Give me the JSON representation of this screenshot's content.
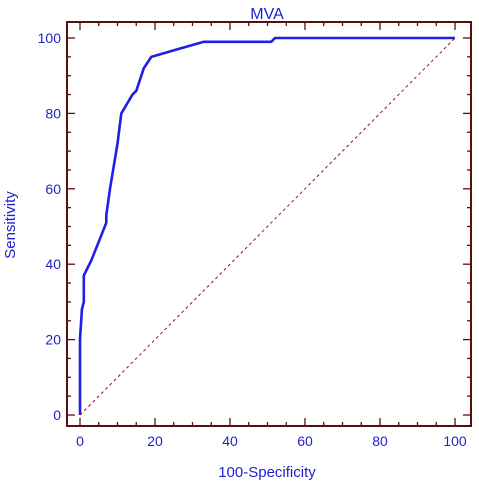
{
  "chart_data": {
    "type": "line",
    "title": "MVA",
    "xlabel": "100-Specificity",
    "ylabel": "Sensitivity",
    "xlim": [
      0,
      100
    ],
    "ylim": [
      0,
      100
    ],
    "x_ticks": [
      0,
      20,
      40,
      60,
      80,
      100
    ],
    "y_ticks": [
      0,
      20,
      40,
      60,
      80,
      100
    ],
    "grid": false,
    "series": [
      {
        "style": "solid",
        "color": "#1f1fe6",
        "x": [
          0,
          0,
          0.5,
          1,
          1,
          2,
          3,
          5,
          7,
          7,
          8,
          10,
          11,
          14,
          15,
          17,
          19,
          26,
          33,
          44,
          51,
          52,
          100
        ],
        "y": [
          0,
          20,
          28,
          30,
          37,
          39,
          41,
          46,
          51,
          53,
          60,
          72,
          80,
          85,
          86,
          92,
          95,
          97,
          99,
          99,
          99,
          100,
          100
        ]
      },
      {
        "style": "dashed",
        "color": "#8b1a1a",
        "x": [
          0,
          100
        ],
        "y": [
          0,
          100
        ]
      }
    ],
    "frame_color": "#5a0f0f"
  }
}
